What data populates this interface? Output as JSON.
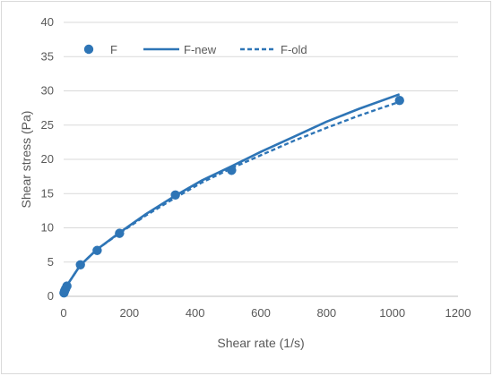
{
  "chart_data": {
    "type": "scatter",
    "title": "",
    "xlabel": "Shear rate (1/s)",
    "ylabel": "Shear stress (Pa)",
    "xlim": [
      0,
      1200
    ],
    "ylim": [
      0,
      40
    ],
    "xticks": [
      0,
      200,
      400,
      600,
      800,
      1000,
      1200
    ],
    "yticks": [
      0,
      5,
      10,
      15,
      20,
      25,
      30,
      35,
      40
    ],
    "grid": "horizontal",
    "legend_position": "top",
    "series": [
      {
        "name": "F",
        "kind": "markers",
        "color": "#2e75b6",
        "x": [
          1,
          3,
          6,
          10,
          51,
          102,
          170,
          340,
          511,
          1022
        ],
        "y": [
          0.5,
          0.8,
          1.1,
          1.5,
          4.6,
          6.7,
          9.2,
          14.8,
          18.4,
          28.6
        ]
      },
      {
        "name": "F-new",
        "kind": "solid-line",
        "color": "#2e75b6",
        "x": [
          0,
          10,
          50,
          100,
          170,
          250,
          340,
          420,
          511,
          600,
          700,
          800,
          900,
          1022
        ],
        "y": [
          0.2,
          1.6,
          4.5,
          6.8,
          9.3,
          12.0,
          14.7,
          16.9,
          19.0,
          21.1,
          23.3,
          25.5,
          27.4,
          29.5
        ]
      },
      {
        "name": "F-old",
        "kind": "dashed-line",
        "color": "#2e75b6",
        "x": [
          0,
          10,
          50,
          100,
          170,
          250,
          340,
          420,
          511,
          600,
          700,
          800,
          900,
          1022
        ],
        "y": [
          0.2,
          1.6,
          4.5,
          6.8,
          9.2,
          11.8,
          14.4,
          16.6,
          18.7,
          20.6,
          22.7,
          24.6,
          26.4,
          28.4
        ]
      }
    ]
  }
}
